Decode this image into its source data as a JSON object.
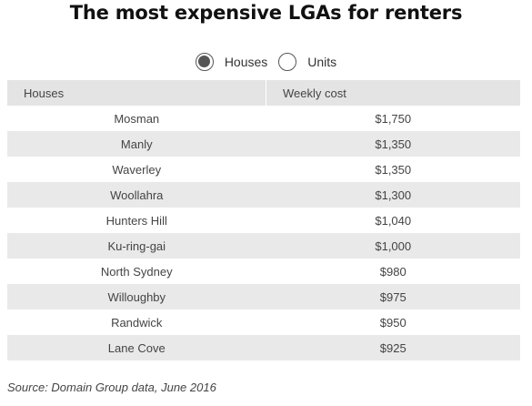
{
  "title": "The most expensive LGAs for renters",
  "toggle": {
    "options": [
      {
        "label": "Houses",
        "selected": true
      },
      {
        "label": "Units",
        "selected": false
      }
    ]
  },
  "table": {
    "headers": [
      "Houses",
      "Weekly cost"
    ],
    "rows": [
      {
        "name": "Mosman",
        "cost": "$1,750"
      },
      {
        "name": "Manly",
        "cost": "$1,350"
      },
      {
        "name": "Waverley",
        "cost": "$1,350"
      },
      {
        "name": "Woollahra",
        "cost": "$1,300"
      },
      {
        "name": "Hunters Hill",
        "cost": "$1,040"
      },
      {
        "name": "Ku-ring-gai",
        "cost": "$1,000"
      },
      {
        "name": "North Sydney",
        "cost": "$980"
      },
      {
        "name": "Willoughby",
        "cost": "$975"
      },
      {
        "name": "Randwick",
        "cost": "$950"
      },
      {
        "name": "Lane Cove",
        "cost": "$925"
      }
    ]
  },
  "source": "Source: Domain Group data, June 2016"
}
